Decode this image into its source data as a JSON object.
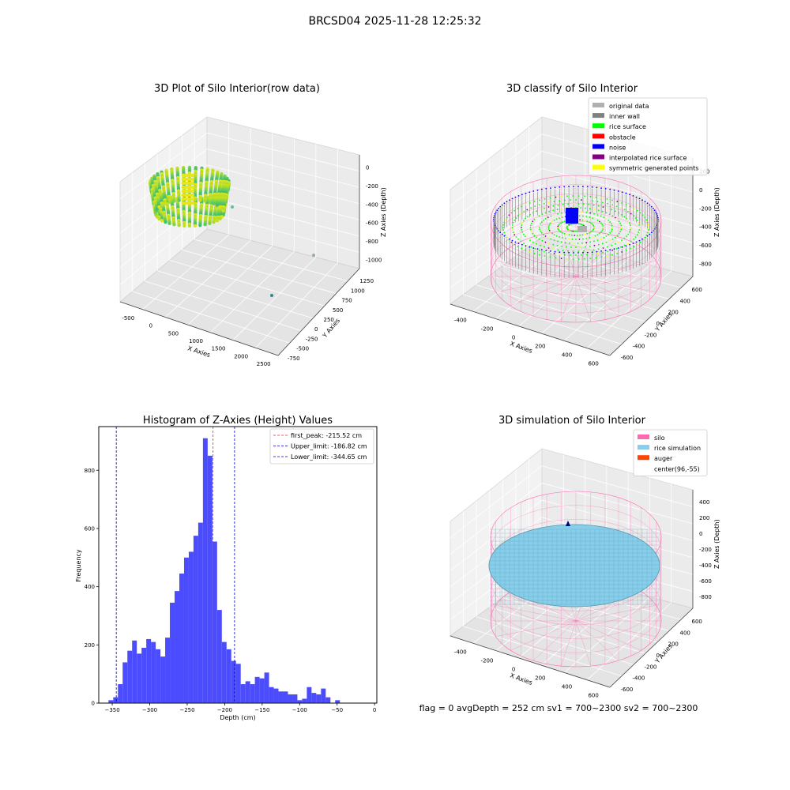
{
  "suptitle": "BRCSD04 2025-11-28 12:25:32",
  "footer": "flag = 0     avgDepth = 252 cm  sv1 = 700~2300  sv2 = 700~2300",
  "colors": {
    "hist_bar": "#4c4cff",
    "peak_line": "#ff2020",
    "limit_line": "#0000cc",
    "silo": "#ff69b4",
    "rice_sim": "#87ceeb",
    "auger": "#ff4500",
    "rice_surface": "#00ff00",
    "original": "#b0b0b0",
    "inner_wall": "#808080",
    "obstacle": "#ff0000",
    "noise": "#0000ff",
    "interp": "#800080",
    "symmetric": "#ffff00"
  },
  "panels": {
    "raw": {
      "title": "3D Plot of Silo Interior(row data)",
      "xlabel": "X Axies",
      "ylabel": "Y Axies",
      "zlabel": "Z Axies (Depth)",
      "xticks": [
        "-500",
        "0",
        "500",
        "1000",
        "1500",
        "2000",
        "2500"
      ],
      "yticks": [
        "-750",
        "-500",
        "-250",
        "0",
        "250",
        "500",
        "750",
        "1000",
        "1250"
      ],
      "zticks": [
        "0",
        "-200",
        "-400",
        "-600",
        "-800",
        "-1000"
      ]
    },
    "classify": {
      "title": "3D classify of Silo Interior",
      "xlabel": "X Axies",
      "ylabel": "Y Axies",
      "zlabel": "Z Axies (Depth)",
      "xticks": [
        "-400",
        "-200",
        "0",
        "200",
        "400",
        "600"
      ],
      "yticks": [
        "-600",
        "-400",
        "-200",
        "0",
        "200",
        "400",
        "600"
      ],
      "zticks": [
        "200",
        "0",
        "-200",
        "-400",
        "-600",
        "-800"
      ],
      "legend": [
        {
          "label": "original data",
          "color": "#b0b0b0"
        },
        {
          "label": "inner wall",
          "color": "#808080"
        },
        {
          "label": "rice surface",
          "color": "#00ff00"
        },
        {
          "label": "obstacle",
          "color": "#ff0000"
        },
        {
          "label": "noise",
          "color": "#0000ff"
        },
        {
          "label": "interpolated rice surface",
          "color": "#800080"
        },
        {
          "label": "symmetric generated points",
          "color": "#ffff00"
        }
      ]
    },
    "simulation": {
      "title": "3D simulation of Silo Interior",
      "xlabel": "X Axies",
      "ylabel": "Y Axies",
      "zlabel": "Z Axies (Depth)",
      "xticks": [
        "-400",
        "-200",
        "0",
        "200",
        "400",
        "600"
      ],
      "yticks": [
        "-600",
        "-400",
        "-200",
        "0",
        "200",
        "400",
        "600"
      ],
      "zticks": [
        "400",
        "200",
        "0",
        "-200",
        "-400",
        "-600",
        "-800"
      ],
      "legend": [
        {
          "label": "silo",
          "color": "#ff69b4"
        },
        {
          "label": "rice simulation",
          "color": "#87ceeb"
        },
        {
          "label": "auger",
          "color": "#ff4500"
        },
        {
          "label": "center(96,-55)",
          "color": "none"
        }
      ]
    }
  },
  "chart_data": {
    "type": "bar",
    "title": "Histogram of Z-Axies (Height) Values",
    "xlabel": "Depth (cm)",
    "ylabel": "Frequency",
    "xlim": [
      -368,
      3
    ],
    "ylim": [
      0,
      950
    ],
    "xticks": [
      -350,
      -300,
      -250,
      -200,
      -150,
      -100,
      -50,
      0
    ],
    "yticks": [
      0,
      200,
      400,
      600,
      800
    ],
    "bin_edges_start": -355,
    "bin_width": 6.3,
    "values": [
      10,
      20,
      65,
      140,
      180,
      215,
      170,
      190,
      220,
      210,
      185,
      160,
      225,
      345,
      385,
      445,
      500,
      520,
      575,
      620,
      910,
      850,
      555,
      320,
      210,
      185,
      145,
      135,
      65,
      75,
      65,
      90,
      85,
      105,
      55,
      50,
      40,
      40,
      30,
      30,
      10,
      15,
      55,
      35,
      30,
      50,
      20,
      0,
      10
    ],
    "lines": [
      {
        "label": "first_peak: -215.52 cm",
        "x": -215.52,
        "style": "dashed",
        "color": "#ff2020"
      },
      {
        "label": "Upper_limit: -186.82 cm",
        "x": -186.82,
        "style": "dashed",
        "color": "#0000cc"
      },
      {
        "label": "Lower_limit: -344.65 cm",
        "x": -344.65,
        "style": "dashed",
        "color": "#0000cc"
      }
    ],
    "legend_position": "upper right"
  }
}
